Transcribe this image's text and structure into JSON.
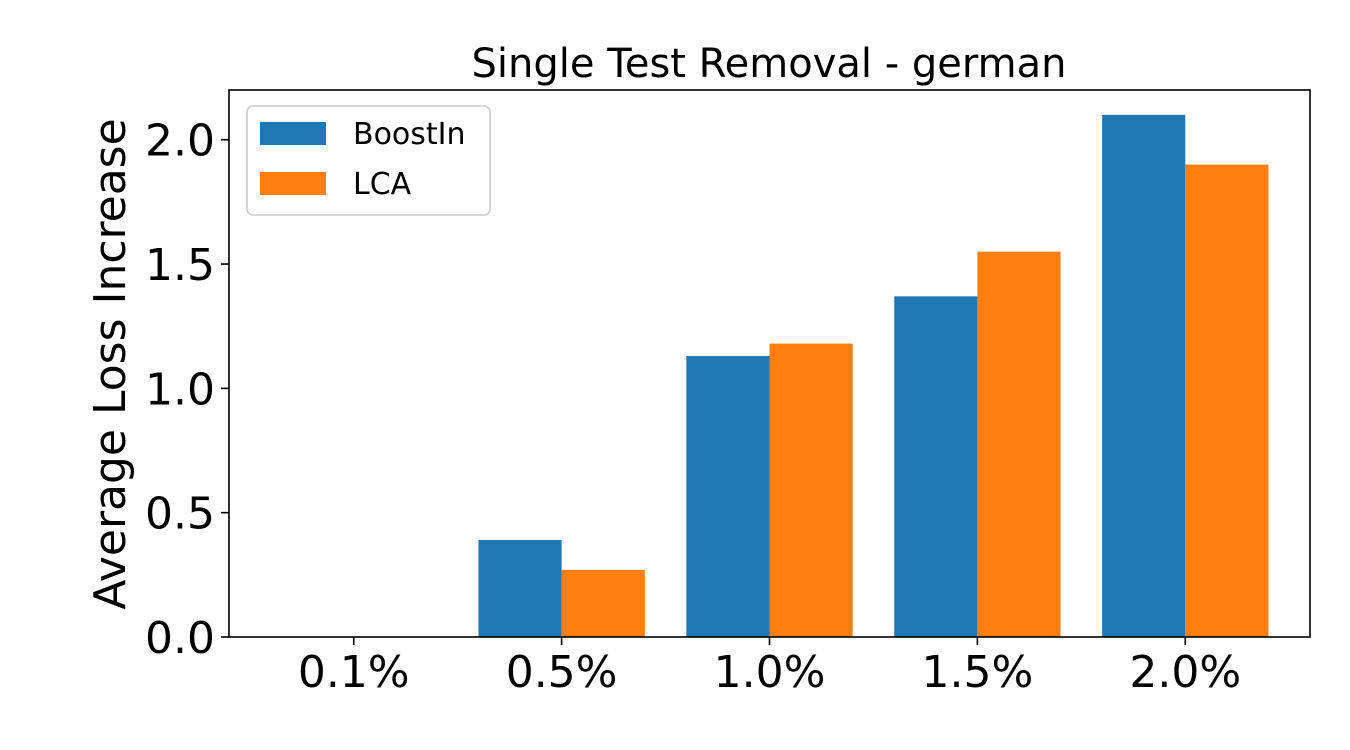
{
  "chart_data": {
    "type": "bar",
    "title": "Single Test Removal - german",
    "xlabel": "",
    "ylabel": "Average Loss Increase",
    "categories": [
      "0.1%",
      "0.5%",
      "1.0%",
      "1.5%",
      "2.0%"
    ],
    "series": [
      {
        "name": "BoostIn",
        "color": "#1f77b4",
        "values": [
          0.0,
          0.39,
          1.13,
          1.37,
          2.1
        ]
      },
      {
        "name": "LCA",
        "color": "#ff7f0e",
        "values": [
          0.0,
          0.27,
          1.18,
          1.55,
          1.9
        ]
      }
    ],
    "ylim": [
      0,
      2.2
    ],
    "yticks": [
      0.0,
      0.5,
      1.0,
      1.5,
      2.0
    ],
    "ytick_labels": [
      "0.0",
      "0.5",
      "1.0",
      "1.5",
      "2.0"
    ],
    "grid": false,
    "legend_position": "top-left"
  }
}
